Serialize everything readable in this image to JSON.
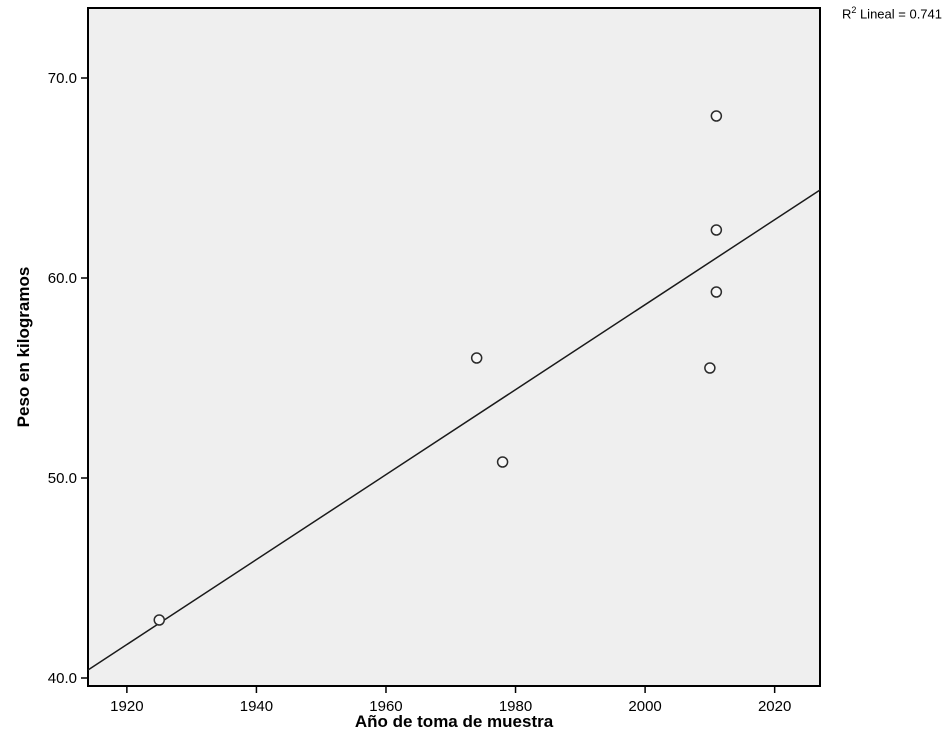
{
  "chart_data": {
    "type": "scatter",
    "annotation": {
      "base": "R",
      "sup": "2",
      "text": " Lineal = 0.741"
    },
    "xlabel": "Año de toma de muestra",
    "ylabel": "Peso en kilogramos",
    "xlim": [
      1914,
      2027
    ],
    "ylim": [
      39.6,
      73.5
    ],
    "grid": false,
    "x_ticks": {
      "values": [
        1920,
        1940,
        1960,
        1980,
        2000,
        2020
      ],
      "labels": [
        "1920",
        "1940",
        "1960",
        "1980",
        "2000",
        "2020"
      ]
    },
    "y_ticks": {
      "values": [
        40,
        50,
        60,
        70
      ],
      "labels": [
        "40.0",
        "50.0",
        "60.0",
        "70.0"
      ]
    },
    "points": [
      {
        "x": 1925,
        "y": 42.9
      },
      {
        "x": 1974,
        "y": 56.0
      },
      {
        "x": 1978,
        "y": 50.8
      },
      {
        "x": 2010,
        "y": 55.5
      },
      {
        "x": 2011,
        "y": 59.3
      },
      {
        "x": 2011,
        "y": 62.4
      },
      {
        "x": 2011,
        "y": 68.1
      }
    ],
    "trendline": {
      "x1": 1914,
      "y1": 40.4,
      "x2": 2027,
      "y2": 64.4
    },
    "colors": {
      "plot_bg": "#efefef",
      "axis": "#000000",
      "marker_stroke": "#2b2b2b",
      "marker_fill": "#f7f7f7",
      "line": "#1a1a1a",
      "tick_text": "#000000"
    }
  }
}
